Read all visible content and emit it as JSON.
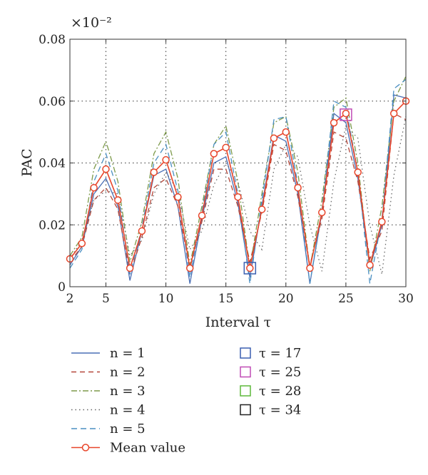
{
  "chart_data": {
    "type": "line",
    "xlabel": "Interval τ",
    "ylabel": "PAC",
    "y_exponent_label": "×10⁻²",
    "xlim": [
      2,
      30
    ],
    "ylim": [
      0,
      0.08
    ],
    "xticks": [
      2,
      5,
      10,
      15,
      20,
      25,
      30
    ],
    "xtick_labels": [
      "2",
      "5",
      "10",
      "15",
      "20",
      "25",
      "30"
    ],
    "yticks": [
      0,
      0.02,
      0.04,
      0.06,
      0.08
    ],
    "ytick_labels": [
      "0",
      "0.02",
      "0.04",
      "0.06",
      "0.08"
    ],
    "grid": true,
    "x": [
      2,
      3,
      4,
      5,
      6,
      7,
      8,
      9,
      10,
      11,
      12,
      13,
      14,
      15,
      16,
      17,
      18,
      19,
      20,
      21,
      22,
      23,
      24,
      25,
      26,
      27,
      28,
      29,
      30
    ],
    "series": [
      {
        "name": "n = 1",
        "color": "#4a6fb5",
        "dash": "",
        "values": [
          0.007,
          0.013,
          0.03,
          0.035,
          0.026,
          0.002,
          0.018,
          0.036,
          0.038,
          0.026,
          0.001,
          0.022,
          0.04,
          0.042,
          0.027,
          0.003,
          0.026,
          0.049,
          0.047,
          0.03,
          0.001,
          0.024,
          0.056,
          0.053,
          0.035,
          0.006,
          0.02,
          0.062,
          0.061
        ]
      },
      {
        "name": "n = 2",
        "color": "#b5473a",
        "dash": "7 5",
        "values": [
          0.008,
          0.013,
          0.028,
          0.032,
          0.025,
          0.004,
          0.016,
          0.032,
          0.035,
          0.026,
          0.006,
          0.021,
          0.038,
          0.038,
          0.026,
          0.008,
          0.024,
          0.046,
          0.044,
          0.029,
          0.007,
          0.022,
          0.05,
          0.048,
          0.034,
          0.009,
          0.018,
          0.056,
          0.054
        ]
      },
      {
        "name": "n = 3",
        "color": "#7d9a4a",
        "dash": "8 3 2 3",
        "values": [
          0.01,
          0.016,
          0.038,
          0.047,
          0.034,
          0.008,
          0.021,
          0.043,
          0.05,
          0.035,
          0.007,
          0.026,
          0.046,
          0.052,
          0.034,
          0.006,
          0.03,
          0.053,
          0.055,
          0.037,
          0.006,
          0.028,
          0.058,
          0.061,
          0.04,
          0.005,
          0.026,
          0.06,
          0.068
        ]
      },
      {
        "name": "n = 4",
        "color": "#666666",
        "dash": "1.5 4",
        "values": [
          0.009,
          0.015,
          0.028,
          0.031,
          0.03,
          0.01,
          0.015,
          0.03,
          0.037,
          0.031,
          0.012,
          0.018,
          0.033,
          0.04,
          0.034,
          0.018,
          0.012,
          0.038,
          0.046,
          0.042,
          0.02,
          0.005,
          0.034,
          0.052,
          0.048,
          0.02,
          0.004,
          0.036,
          0.055
        ]
      },
      {
        "name": "n = 5",
        "color": "#4a8fc2",
        "dash": "8 5",
        "values": [
          0.006,
          0.012,
          0.034,
          0.043,
          0.031,
          0.004,
          0.019,
          0.04,
          0.046,
          0.031,
          0.003,
          0.024,
          0.046,
          0.05,
          0.03,
          0.001,
          0.028,
          0.054,
          0.055,
          0.033,
          0.001,
          0.025,
          0.06,
          0.058,
          0.037,
          0.001,
          0.022,
          0.064,
          0.067
        ]
      },
      {
        "name": "Mean value",
        "color": "#e8452a",
        "dash": "",
        "marker": "circle",
        "values": [
          0.009,
          0.014,
          0.032,
          0.038,
          0.028,
          0.006,
          0.018,
          0.037,
          0.041,
          0.029,
          0.006,
          0.023,
          0.043,
          0.045,
          0.029,
          0.006,
          0.025,
          0.048,
          0.05,
          0.032,
          0.006,
          0.024,
          0.053,
          0.056,
          0.037,
          0.007,
          0.021,
          0.056,
          0.06
        ]
      }
    ],
    "highlight_markers": [
      {
        "name": "τ = 17",
        "color": "#3a5fb0",
        "x": 17,
        "y": 0.006
      },
      {
        "name": "τ = 25",
        "color": "#c04bb5",
        "x": 25,
        "y": 0.0556
      },
      {
        "name": "τ = 28",
        "color": "#5db83a"
      },
      {
        "name": "τ = 34",
        "color": "#222222"
      }
    ],
    "legend_placement": "below"
  }
}
